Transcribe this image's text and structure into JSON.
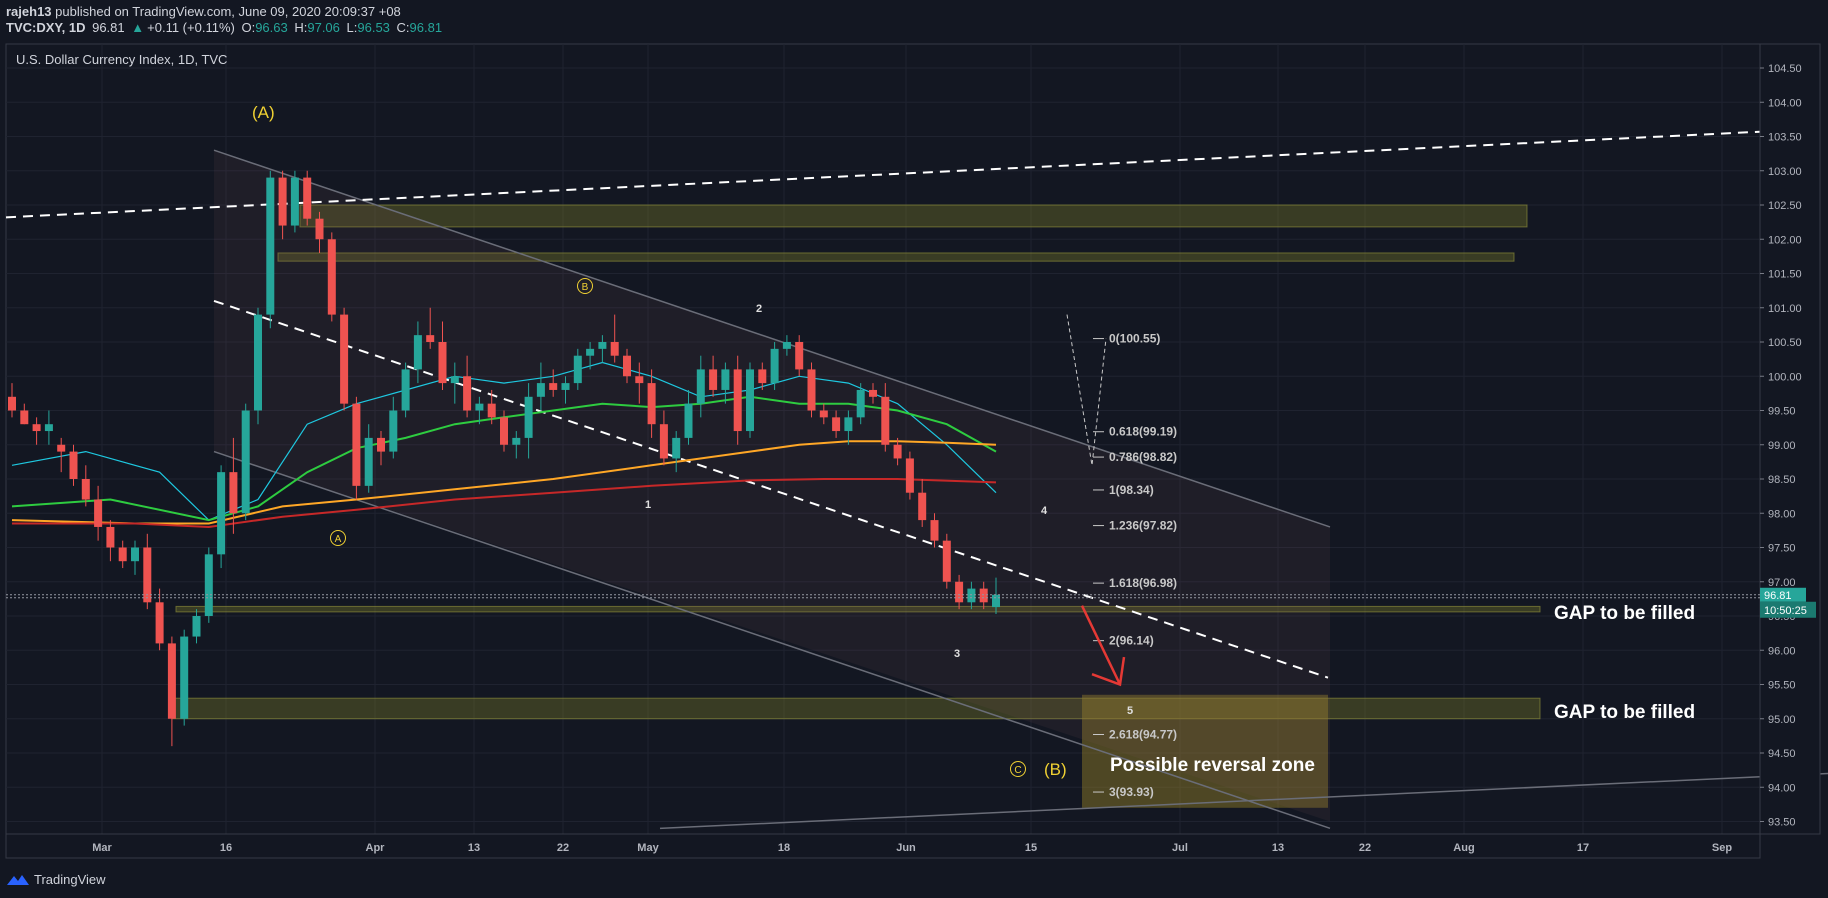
{
  "header": {
    "author": "rajeh13",
    "published": "published on TradingView.com, June 09, 2020 20:09:37 +08",
    "symbol": "TVC:DXY, 1D",
    "last": "96.81",
    "change": "+0.11 (+0.11%)",
    "o_label": "O:",
    "o": "96.63",
    "h_label": "H:",
    "h": "97.06",
    "l_label": "L:",
    "l": "96.53",
    "c_label": "C:",
    "c": "96.81"
  },
  "colors": {
    "up": "#26a69a",
    "down": "#ef5350",
    "annot_yellow": "#f0d133",
    "ma_cyan": "#1ec8e0",
    "ma_green": "#2ecc40",
    "ma_orange": "#ffa726",
    "ma_red": "#c62828"
  },
  "chart_data": {
    "type": "candlestick",
    "title": "U.S. Dollar Currency Index, 1D, TVC",
    "ylim": [
      93.4,
      104.6
    ],
    "y_ticks": [
      "104.50",
      "104.00",
      "103.50",
      "103.00",
      "102.50",
      "102.00",
      "101.50",
      "101.00",
      "100.50",
      "100.00",
      "99.50",
      "99.00",
      "98.50",
      "98.00",
      "97.50",
      "97.00",
      "96.50",
      "96.00",
      "95.50",
      "95.00",
      "94.50",
      "94.00",
      "93.50"
    ],
    "x_ticks": [
      "Mar",
      "16",
      "Apr",
      "13",
      "22",
      "May",
      "18",
      "Jun",
      "15",
      "Jul",
      "13",
      "22",
      "Aug",
      "17",
      "Sep"
    ],
    "last_price": "96.81",
    "countdown": "10:50:25",
    "candles": [
      [
        99.7,
        99.9,
        99.4,
        99.5
      ],
      [
        99.5,
        99.6,
        99.3,
        99.3
      ],
      [
        99.3,
        99.4,
        99.0,
        99.2
      ],
      [
        99.2,
        99.5,
        99.0,
        99.3
      ],
      [
        99.0,
        99.1,
        98.6,
        98.9
      ],
      [
        98.9,
        99.0,
        98.4,
        98.5
      ],
      [
        98.5,
        98.7,
        98.1,
        98.2
      ],
      [
        98.2,
        98.4,
        97.6,
        97.8
      ],
      [
        97.8,
        97.9,
        97.3,
        97.5
      ],
      [
        97.5,
        97.6,
        97.2,
        97.3
      ],
      [
        97.3,
        97.6,
        97.1,
        97.5
      ],
      [
        97.5,
        97.7,
        96.6,
        96.7
      ],
      [
        96.7,
        96.9,
        96.0,
        96.1
      ],
      [
        96.1,
        96.2,
        94.6,
        95.0
      ],
      [
        95.0,
        96.3,
        94.9,
        96.2
      ],
      [
        96.2,
        96.6,
        96.1,
        96.5
      ],
      [
        96.5,
        97.5,
        96.4,
        97.4
      ],
      [
        97.4,
        98.7,
        97.2,
        98.6
      ],
      [
        98.6,
        99.1,
        97.7,
        98.0
      ],
      [
        98.0,
        99.6,
        97.9,
        99.5
      ],
      [
        99.5,
        101.0,
        99.3,
        100.9
      ],
      [
        100.9,
        103.0,
        100.7,
        102.9
      ],
      [
        102.9,
        103.0,
        102.0,
        102.2
      ],
      [
        102.2,
        103.0,
        102.1,
        102.9
      ],
      [
        102.9,
        103.0,
        102.2,
        102.3
      ],
      [
        102.3,
        102.4,
        101.8,
        102.0
      ],
      [
        102.0,
        102.1,
        100.8,
        100.9
      ],
      [
        100.9,
        101.0,
        99.5,
        99.6
      ],
      [
        99.6,
        99.7,
        98.2,
        98.4
      ],
      [
        98.4,
        99.3,
        98.3,
        99.1
      ],
      [
        99.1,
        99.2,
        98.7,
        98.9
      ],
      [
        98.9,
        99.7,
        98.8,
        99.5
      ],
      [
        99.5,
        100.2,
        99.4,
        100.1
      ],
      [
        100.1,
        100.8,
        99.9,
        100.6
      ],
      [
        100.6,
        101.0,
        100.4,
        100.5
      ],
      [
        100.5,
        100.8,
        99.8,
        99.9
      ],
      [
        99.9,
        100.2,
        99.6,
        100.0
      ],
      [
        100.0,
        100.3,
        99.4,
        99.5
      ],
      [
        99.5,
        99.7,
        99.3,
        99.6
      ],
      [
        99.6,
        99.8,
        99.3,
        99.4
      ],
      [
        99.4,
        99.5,
        98.9,
        99.0
      ],
      [
        99.0,
        99.2,
        98.8,
        99.1
      ],
      [
        99.1,
        99.9,
        98.8,
        99.7
      ],
      [
        99.7,
        100.2,
        99.5,
        99.9
      ],
      [
        99.9,
        100.1,
        99.7,
        99.8
      ],
      [
        99.8,
        100.0,
        99.6,
        99.9
      ],
      [
        99.9,
        100.4,
        99.8,
        100.3
      ],
      [
        100.3,
        100.5,
        100.1,
        100.4
      ],
      [
        100.4,
        100.6,
        100.2,
        100.5
      ],
      [
        100.5,
        100.9,
        100.2,
        100.3
      ],
      [
        100.3,
        100.4,
        99.9,
        100.0
      ],
      [
        100.0,
        100.2,
        99.6,
        99.9
      ],
      [
        99.9,
        100.1,
        99.1,
        99.3
      ],
      [
        99.3,
        99.5,
        98.7,
        98.8
      ],
      [
        98.8,
        99.2,
        98.6,
        99.1
      ],
      [
        99.1,
        99.8,
        99.0,
        99.6
      ],
      [
        99.6,
        100.3,
        99.4,
        100.1
      ],
      [
        100.1,
        100.3,
        99.7,
        99.8
      ],
      [
        99.8,
        100.2,
        99.6,
        100.1
      ],
      [
        100.1,
        100.3,
        99.0,
        99.2
      ],
      [
        99.2,
        100.2,
        99.1,
        100.1
      ],
      [
        100.1,
        100.2,
        99.8,
        99.9
      ],
      [
        99.9,
        100.5,
        99.8,
        100.4
      ],
      [
        100.4,
        100.6,
        100.3,
        100.5
      ],
      [
        100.5,
        100.6,
        100.0,
        100.1
      ],
      [
        100.1,
        100.2,
        99.4,
        99.5
      ],
      [
        99.5,
        99.6,
        99.3,
        99.4
      ],
      [
        99.4,
        99.5,
        99.1,
        99.2
      ],
      [
        99.2,
        99.5,
        99.0,
        99.4
      ],
      [
        99.4,
        99.9,
        99.3,
        99.8
      ],
      [
        99.8,
        99.9,
        99.6,
        99.7
      ],
      [
        99.7,
        99.9,
        98.9,
        99.0
      ],
      [
        99.0,
        99.1,
        98.7,
        98.8
      ],
      [
        98.8,
        98.9,
        98.2,
        98.3
      ],
      [
        98.3,
        98.5,
        97.8,
        97.9
      ],
      [
        97.9,
        98.0,
        97.5,
        97.6
      ],
      [
        97.6,
        97.7,
        96.9,
        97.0
      ],
      [
        97.0,
        97.1,
        96.6,
        96.7
      ],
      [
        96.7,
        97.0,
        96.6,
        96.9
      ],
      [
        96.9,
        97.0,
        96.6,
        96.7
      ],
      [
        96.63,
        97.06,
        96.53,
        96.81
      ]
    ],
    "moving_averages": [
      {
        "color": "#1ec8e0",
        "values": [
          [
            0,
            98.7
          ],
          [
            6,
            98.9
          ],
          [
            12,
            98.6
          ],
          [
            16,
            97.9
          ],
          [
            20,
            98.2
          ],
          [
            24,
            99.3
          ],
          [
            28,
            99.6
          ],
          [
            32,
            99.8
          ],
          [
            36,
            100.0
          ],
          [
            40,
            99.9
          ],
          [
            44,
            100.0
          ],
          [
            48,
            100.2
          ],
          [
            52,
            100.0
          ],
          [
            56,
            99.7
          ],
          [
            60,
            99.8
          ],
          [
            64,
            100.0
          ],
          [
            68,
            99.9
          ],
          [
            72,
            99.6
          ],
          [
            76,
            99.0
          ],
          [
            80,
            98.3
          ]
        ]
      },
      {
        "color": "#2ecc40",
        "values": [
          [
            0,
            98.1
          ],
          [
            8,
            98.2
          ],
          [
            16,
            97.9
          ],
          [
            20,
            98.1
          ],
          [
            24,
            98.6
          ],
          [
            28,
            98.95
          ],
          [
            32,
            99.1
          ],
          [
            36,
            99.3
          ],
          [
            40,
            99.4
          ],
          [
            44,
            99.5
          ],
          [
            48,
            99.6
          ],
          [
            52,
            99.55
          ],
          [
            56,
            99.6
          ],
          [
            60,
            99.7
          ],
          [
            64,
            99.6
          ],
          [
            68,
            99.6
          ],
          [
            72,
            99.5
          ],
          [
            76,
            99.3
          ],
          [
            80,
            98.9
          ]
        ]
      },
      {
        "color": "#ffa726",
        "values": [
          [
            0,
            97.9
          ],
          [
            10,
            97.85
          ],
          [
            16,
            97.85
          ],
          [
            22,
            98.1
          ],
          [
            28,
            98.2
          ],
          [
            36,
            98.35
          ],
          [
            44,
            98.5
          ],
          [
            52,
            98.7
          ],
          [
            60,
            98.9
          ],
          [
            64,
            99.0
          ],
          [
            68,
            99.05
          ],
          [
            72,
            99.05
          ],
          [
            76,
            99.03
          ],
          [
            80,
            99.0
          ]
        ]
      },
      {
        "color": "#c62828",
        "values": [
          [
            0,
            97.85
          ],
          [
            10,
            97.85
          ],
          [
            16,
            97.8
          ],
          [
            22,
            97.95
          ],
          [
            28,
            98.05
          ],
          [
            36,
            98.2
          ],
          [
            44,
            98.3
          ],
          [
            52,
            98.4
          ],
          [
            60,
            98.48
          ],
          [
            66,
            98.5
          ],
          [
            72,
            98.5
          ],
          [
            80,
            98.45
          ]
        ]
      }
    ],
    "fib_levels": [
      {
        "label": "0(100.55)",
        "value": 100.55
      },
      {
        "label": "0.618(99.19)",
        "value": 99.19
      },
      {
        "label": "0.786(98.82)",
        "value": 98.82
      },
      {
        "label": "1(98.34)",
        "value": 98.34
      },
      {
        "label": "1.236(97.82)",
        "value": 97.82
      },
      {
        "label": "1.618(96.98)",
        "value": 96.98
      },
      {
        "label": "2(96.14)",
        "value": 96.14
      },
      {
        "label": "2.618(94.77)",
        "value": 94.77
      },
      {
        "label": "3(93.93)",
        "value": 93.93
      }
    ],
    "annotations": {
      "wave_A_big": "(A)",
      "wave_B_big": "(B)",
      "wave_a": "A",
      "wave_b": "B",
      "wave_c": "C",
      "w1": "1",
      "w2": "2",
      "w3": "3",
      "w4": "4",
      "w5": "5",
      "gap1": "GAP to be filled",
      "gap2": "GAP to be filled",
      "reversal": "Possible reversal zone"
    }
  },
  "footer": {
    "brand": "TradingView"
  }
}
